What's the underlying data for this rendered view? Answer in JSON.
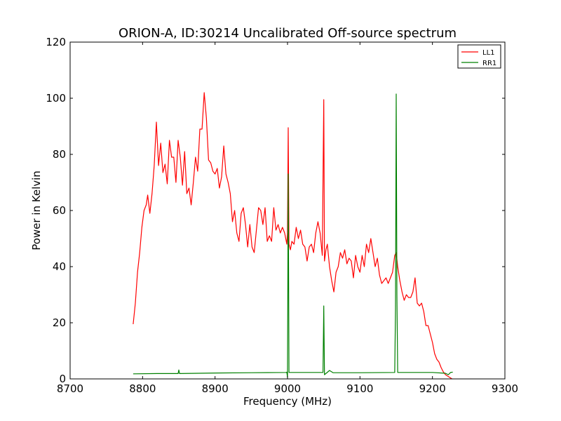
{
  "chart_data": {
    "type": "line",
    "title": "ORION-A, ID:30214 Uncalibrated Off-source spectrum",
    "xlabel": "Frequency (MHz)",
    "ylabel": "Power in Kelvin",
    "xlim": [
      8700,
      9300
    ],
    "ylim": [
      0,
      120
    ],
    "xticks": [
      8700,
      8800,
      8900,
      9000,
      9100,
      9200,
      9300
    ],
    "yticks": [
      0,
      20,
      40,
      60,
      80,
      100,
      120
    ],
    "grid": false,
    "legend_position": "top-right",
    "series": [
      {
        "name": "LL1",
        "color": "#ff0000",
        "points": [
          [
            8787,
            19.5
          ],
          [
            8790,
            27
          ],
          [
            8793,
            38
          ],
          [
            8796,
            45
          ],
          [
            8799,
            54
          ],
          [
            8802,
            60
          ],
          [
            8805,
            62
          ],
          [
            8807,
            65.5
          ],
          [
            8810,
            59
          ],
          [
            8813,
            66
          ],
          [
            8816,
            76
          ],
          [
            8819,
            91.5
          ],
          [
            8822,
            76
          ],
          [
            8825,
            84
          ],
          [
            8828,
            73.5
          ],
          [
            8831,
            76.5
          ],
          [
            8834,
            69.5
          ],
          [
            8837,
            85
          ],
          [
            8840,
            79
          ],
          [
            8843,
            79
          ],
          [
            8846,
            70
          ],
          [
            8849,
            85
          ],
          [
            8852,
            79
          ],
          [
            8855,
            69
          ],
          [
            8858,
            81
          ],
          [
            8861,
            66
          ],
          [
            8864,
            68
          ],
          [
            8867,
            62
          ],
          [
            8870,
            70
          ],
          [
            8873,
            79
          ],
          [
            8876,
            74
          ],
          [
            8879,
            89
          ],
          [
            8882,
            89
          ],
          [
            8885,
            102
          ],
          [
            8888,
            93
          ],
          [
            8891,
            78
          ],
          [
            8894,
            77
          ],
          [
            8897,
            74
          ],
          [
            8900,
            73
          ],
          [
            8903,
            75
          ],
          [
            8906,
            68
          ],
          [
            8909,
            72
          ],
          [
            8912,
            83
          ],
          [
            8915,
            73
          ],
          [
            8918,
            70
          ],
          [
            8921,
            66
          ],
          [
            8924,
            56
          ],
          [
            8927,
            60
          ],
          [
            8930,
            52
          ],
          [
            8933,
            49
          ],
          [
            8936,
            59
          ],
          [
            8939,
            61
          ],
          [
            8942,
            55
          ],
          [
            8945,
            47
          ],
          [
            8948,
            55
          ],
          [
            8951,
            47
          ],
          [
            8954,
            45
          ],
          [
            8957,
            53
          ],
          [
            8960,
            61
          ],
          [
            8963,
            60
          ],
          [
            8966,
            55
          ],
          [
            8969,
            61
          ],
          [
            8972,
            49
          ],
          [
            8975,
            51
          ],
          [
            8978,
            49
          ],
          [
            8981,
            61
          ],
          [
            8984,
            53
          ],
          [
            8987,
            55
          ],
          [
            8990,
            52
          ],
          [
            8993,
            54
          ],
          [
            8996,
            52
          ],
          [
            8999,
            48
          ],
          [
            9000,
            52
          ],
          [
            9001,
            89.5
          ],
          [
            9002,
            48
          ],
          [
            9004,
            46
          ],
          [
            9006,
            49
          ],
          [
            9009,
            48
          ],
          [
            9012,
            54
          ],
          [
            9015,
            50
          ],
          [
            9018,
            53
          ],
          [
            9021,
            48
          ],
          [
            9024,
            47
          ],
          [
            9027,
            42
          ],
          [
            9030,
            47
          ],
          [
            9033,
            48
          ],
          [
            9036,
            45
          ],
          [
            9039,
            52
          ],
          [
            9042,
            56
          ],
          [
            9045,
            52
          ],
          [
            9048,
            44
          ],
          [
            9050,
            99.5
          ],
          [
            9051,
            42
          ],
          [
            9053,
            46
          ],
          [
            9055,
            48
          ],
          [
            9058,
            40
          ],
          [
            9061,
            35
          ],
          [
            9064,
            31
          ],
          [
            9067,
            38
          ],
          [
            9070,
            40
          ],
          [
            9073,
            45
          ],
          [
            9076,
            43
          ],
          [
            9079,
            46
          ],
          [
            9082,
            41
          ],
          [
            9085,
            43
          ],
          [
            9088,
            42
          ],
          [
            9091,
            36
          ],
          [
            9094,
            44
          ],
          [
            9097,
            40
          ],
          [
            9100,
            38
          ],
          [
            9103,
            44
          ],
          [
            9106,
            40
          ],
          [
            9109,
            48
          ],
          [
            9112,
            45
          ],
          [
            9115,
            50
          ],
          [
            9118,
            45
          ],
          [
            9121,
            40
          ],
          [
            9124,
            43
          ],
          [
            9127,
            37
          ],
          [
            9130,
            34
          ],
          [
            9133,
            35
          ],
          [
            9136,
            36
          ],
          [
            9139,
            34
          ],
          [
            9142,
            36
          ],
          [
            9145,
            38
          ],
          [
            9148,
            44
          ],
          [
            9150,
            45
          ],
          [
            9152,
            40
          ],
          [
            9155,
            35
          ],
          [
            9158,
            31
          ],
          [
            9161,
            28
          ],
          [
            9164,
            30
          ],
          [
            9167,
            29
          ],
          [
            9170,
            29
          ],
          [
            9173,
            31
          ],
          [
            9176,
            36
          ],
          [
            9179,
            27
          ],
          [
            9182,
            26
          ],
          [
            9185,
            27
          ],
          [
            9188,
            24
          ],
          [
            9191,
            19
          ],
          [
            9194,
            19
          ],
          [
            9197,
            16
          ],
          [
            9200,
            13
          ],
          [
            9203,
            9
          ],
          [
            9206,
            7
          ],
          [
            9209,
            6
          ],
          [
            9212,
            4
          ],
          [
            9215,
            2.5
          ],
          [
            9218,
            1.5
          ],
          [
            9221,
            1
          ],
          [
            9224,
            0.5
          ],
          [
            9227,
            0
          ]
        ]
      },
      {
        "name": "RR1",
        "color": "#008000",
        "points": [
          [
            8787,
            1.8
          ],
          [
            8820,
            1.9
          ],
          [
            8849,
            1.9
          ],
          [
            8850,
            3.2
          ],
          [
            8851,
            1.9
          ],
          [
            8900,
            2.1
          ],
          [
            8950,
            2.2
          ],
          [
            8998,
            2.3
          ],
          [
            8999,
            2.4
          ],
          [
            9000,
            0.5
          ],
          [
            9001,
            73
          ],
          [
            9002,
            2.3
          ],
          [
            9049,
            2.3
          ],
          [
            9050,
            26
          ],
          [
            9051,
            1.5
          ],
          [
            9058,
            3
          ],
          [
            9063,
            2.2
          ],
          [
            9100,
            2.2
          ],
          [
            9148,
            2.3
          ],
          [
            9149,
            25
          ],
          [
            9150,
            101.5
          ],
          [
            9151,
            30
          ],
          [
            9152,
            2.3
          ],
          [
            9200,
            2.3
          ],
          [
            9218,
            2
          ],
          [
            9222,
            1.5
          ],
          [
            9225,
            2.3
          ],
          [
            9228,
            2.4
          ]
        ]
      }
    ]
  }
}
